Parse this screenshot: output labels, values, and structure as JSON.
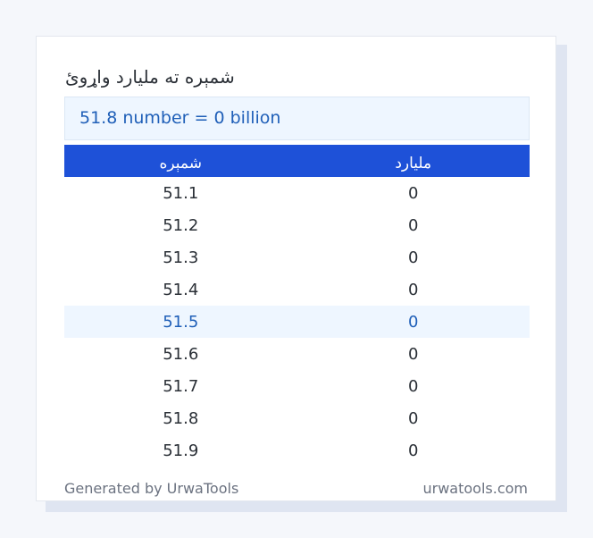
{
  "card": {
    "title": "شمېره ته مليارد واړوئ",
    "result": "51.8 number = 0 billion"
  },
  "table": {
    "headers": [
      "شمېره",
      "مليارد"
    ],
    "rows": [
      [
        "51.1",
        "0"
      ],
      [
        "51.2",
        "0"
      ],
      [
        "51.3",
        "0"
      ],
      [
        "51.4",
        "0"
      ],
      [
        "51.5",
        "0"
      ],
      [
        "51.6",
        "0"
      ],
      [
        "51.7",
        "0"
      ],
      [
        "51.8",
        "0"
      ],
      [
        "51.9",
        "0"
      ]
    ],
    "highlighted_row_value": "51.5"
  },
  "footer": {
    "generated_by": "Generated by UrwaTools",
    "site": "urwatools.com"
  },
  "colors": {
    "accent": "#1e51d8",
    "highlight_bg": "#eef6ff",
    "highlight_text": "#1f5fb8"
  }
}
